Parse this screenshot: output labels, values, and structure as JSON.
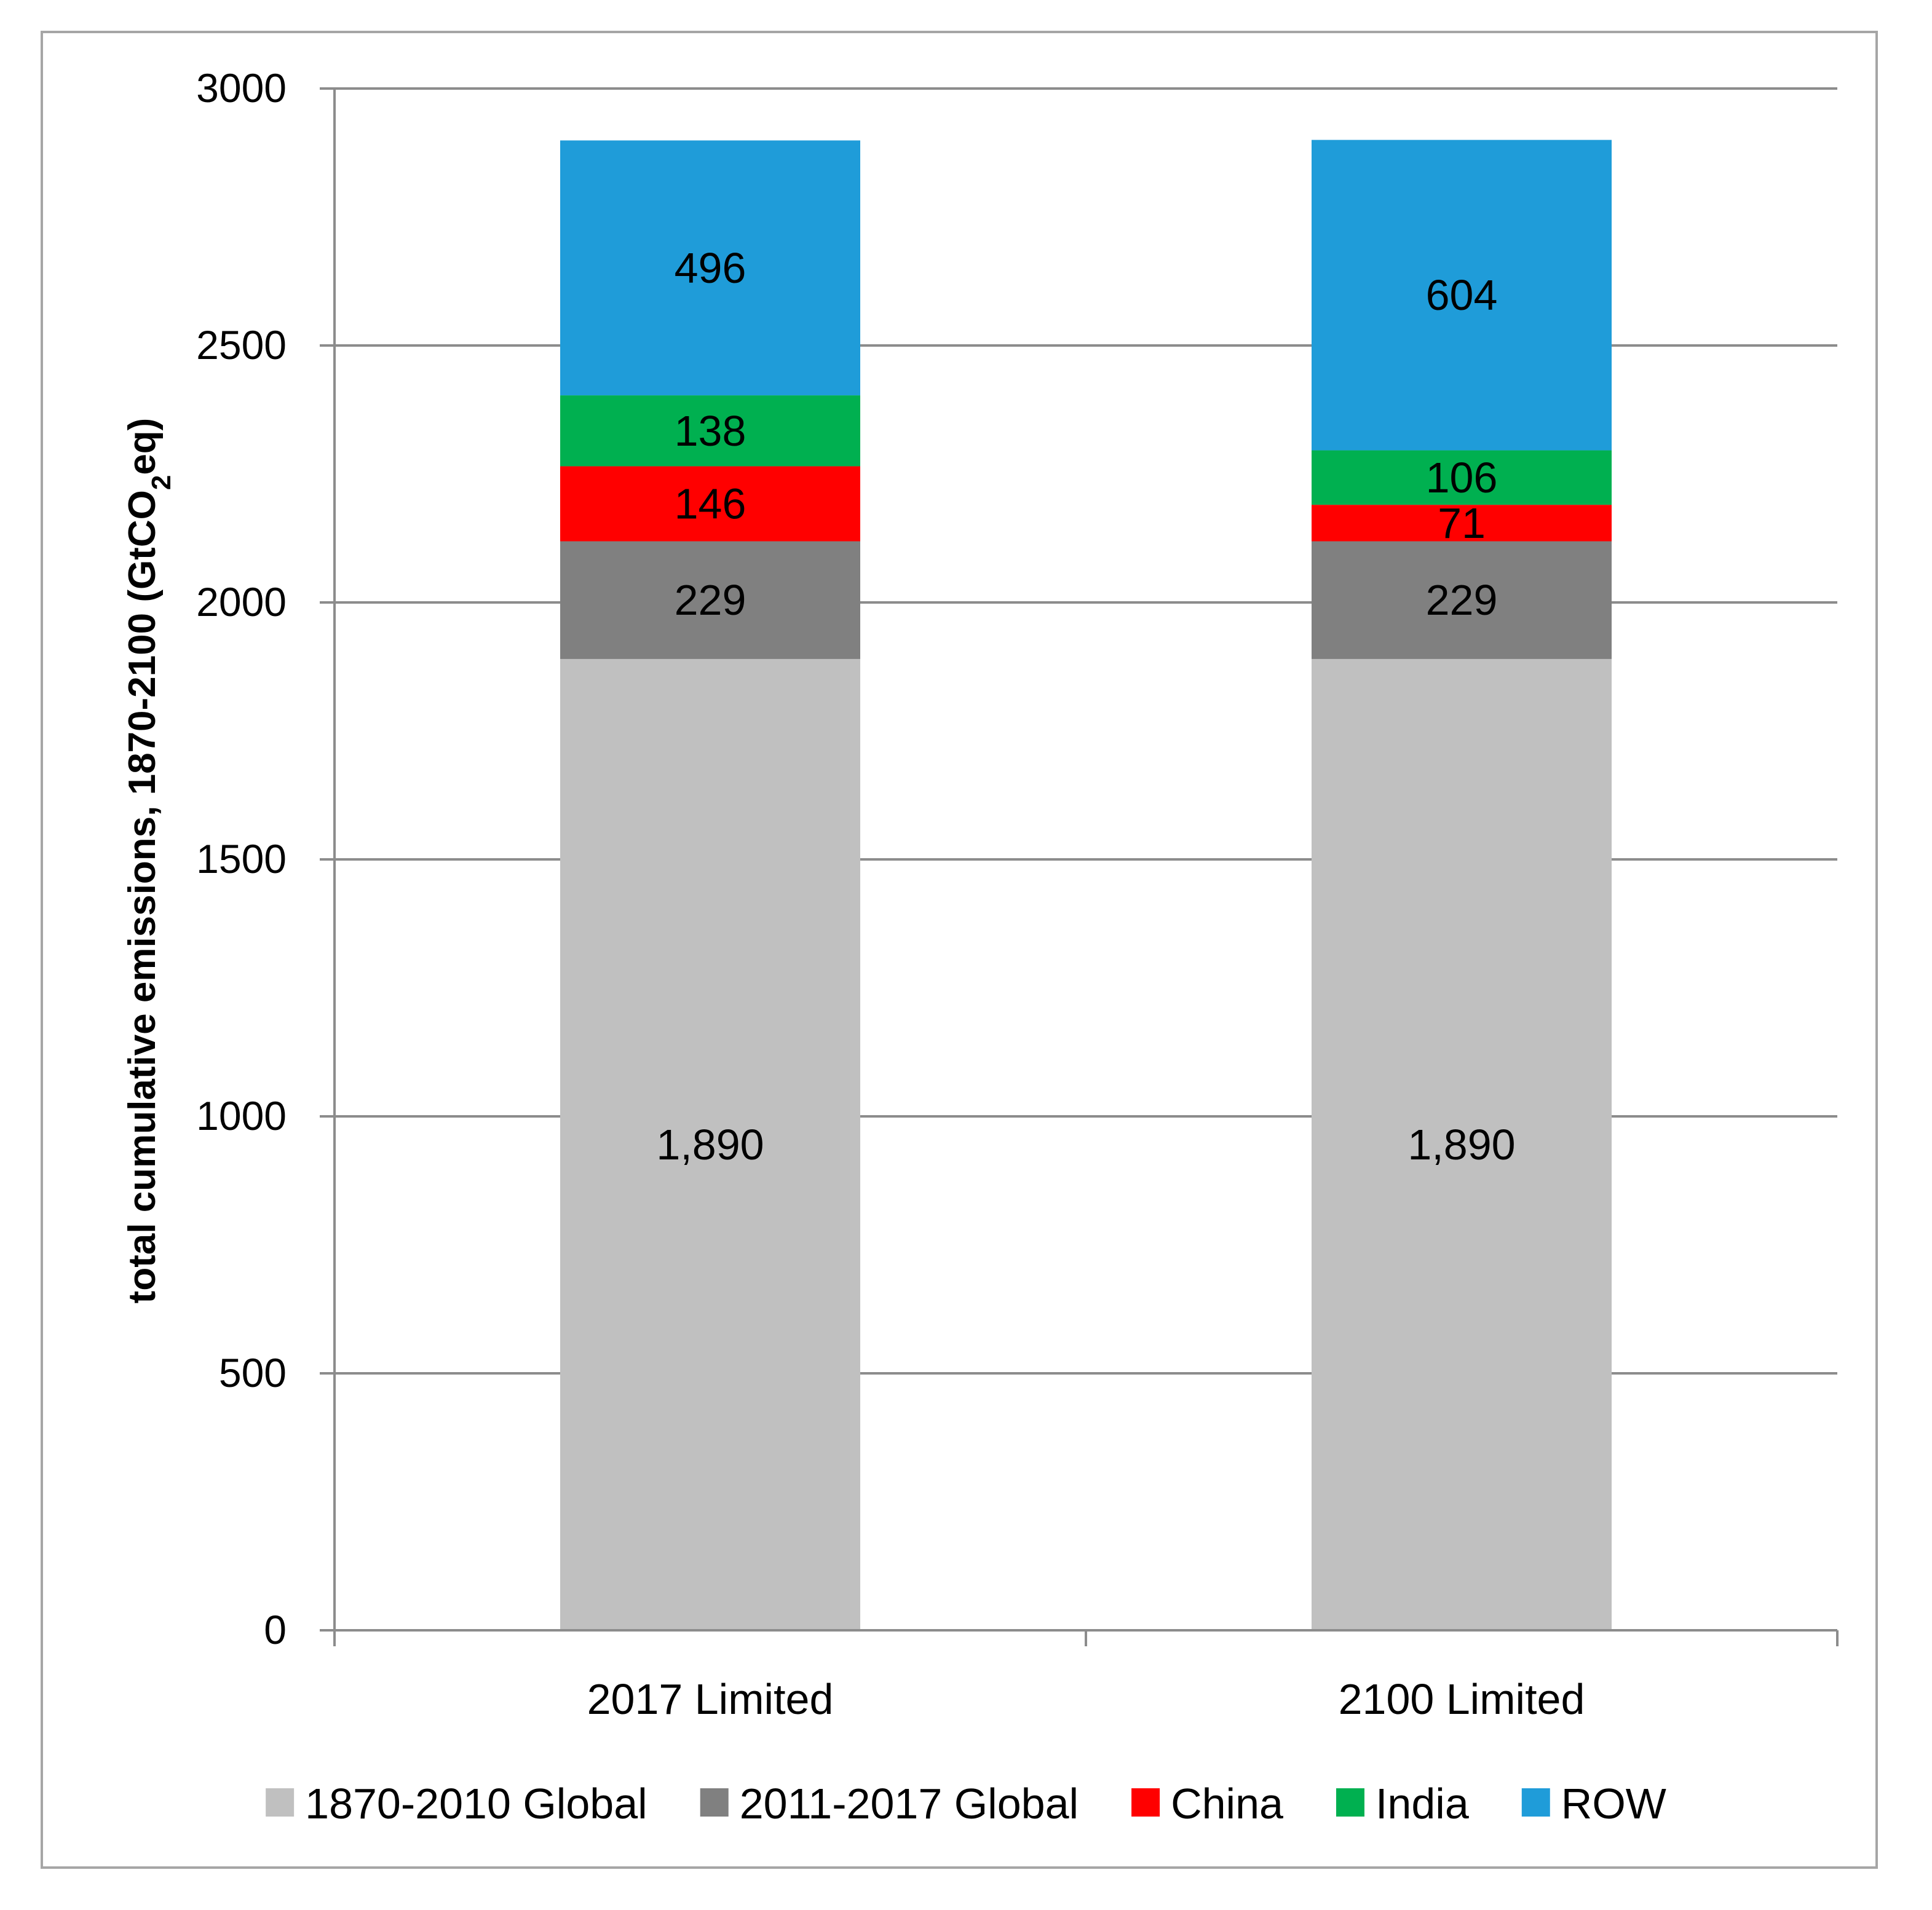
{
  "chart_data": {
    "type": "bar",
    "stacked": true,
    "title": "",
    "xlabel": "",
    "ylabel_main": "total cumulative emissions, 1870-2100 (GtCO",
    "ylabel_sub": "2",
    "ylabel_end": "eq)",
    "ylim": [
      0,
      3000
    ],
    "yticks": [
      0,
      500,
      1000,
      1500,
      2000,
      2500,
      3000
    ],
    "ytick_labels": [
      "0",
      "500",
      "1000",
      "1500",
      "2000",
      "2500",
      "3000"
    ],
    "categories": [
      "2017 Limited",
      "2100 Limited"
    ],
    "series": [
      {
        "name": "1870-2010 Global",
        "color": "#c0c0c0",
        "values": [
          1890,
          1890
        ],
        "labels": [
          "1,890",
          "1,890"
        ]
      },
      {
        "name": "2011-2017 Global",
        "color": "#808080",
        "values": [
          229,
          229
        ],
        "labels": [
          "229",
          "229"
        ]
      },
      {
        "name": "China",
        "color": "#ff0000",
        "values": [
          146,
          71
        ],
        "labels": [
          "146",
          "71"
        ]
      },
      {
        "name": "India",
        "color": "#00b050",
        "values": [
          138,
          106
        ],
        "labels": [
          "138",
          "106"
        ]
      },
      {
        "name": "ROW",
        "color": "#1f9cd9",
        "values": [
          496,
          604
        ],
        "labels": [
          "496",
          "604"
        ]
      }
    ],
    "legend_position": "bottom",
    "grid": true
  }
}
